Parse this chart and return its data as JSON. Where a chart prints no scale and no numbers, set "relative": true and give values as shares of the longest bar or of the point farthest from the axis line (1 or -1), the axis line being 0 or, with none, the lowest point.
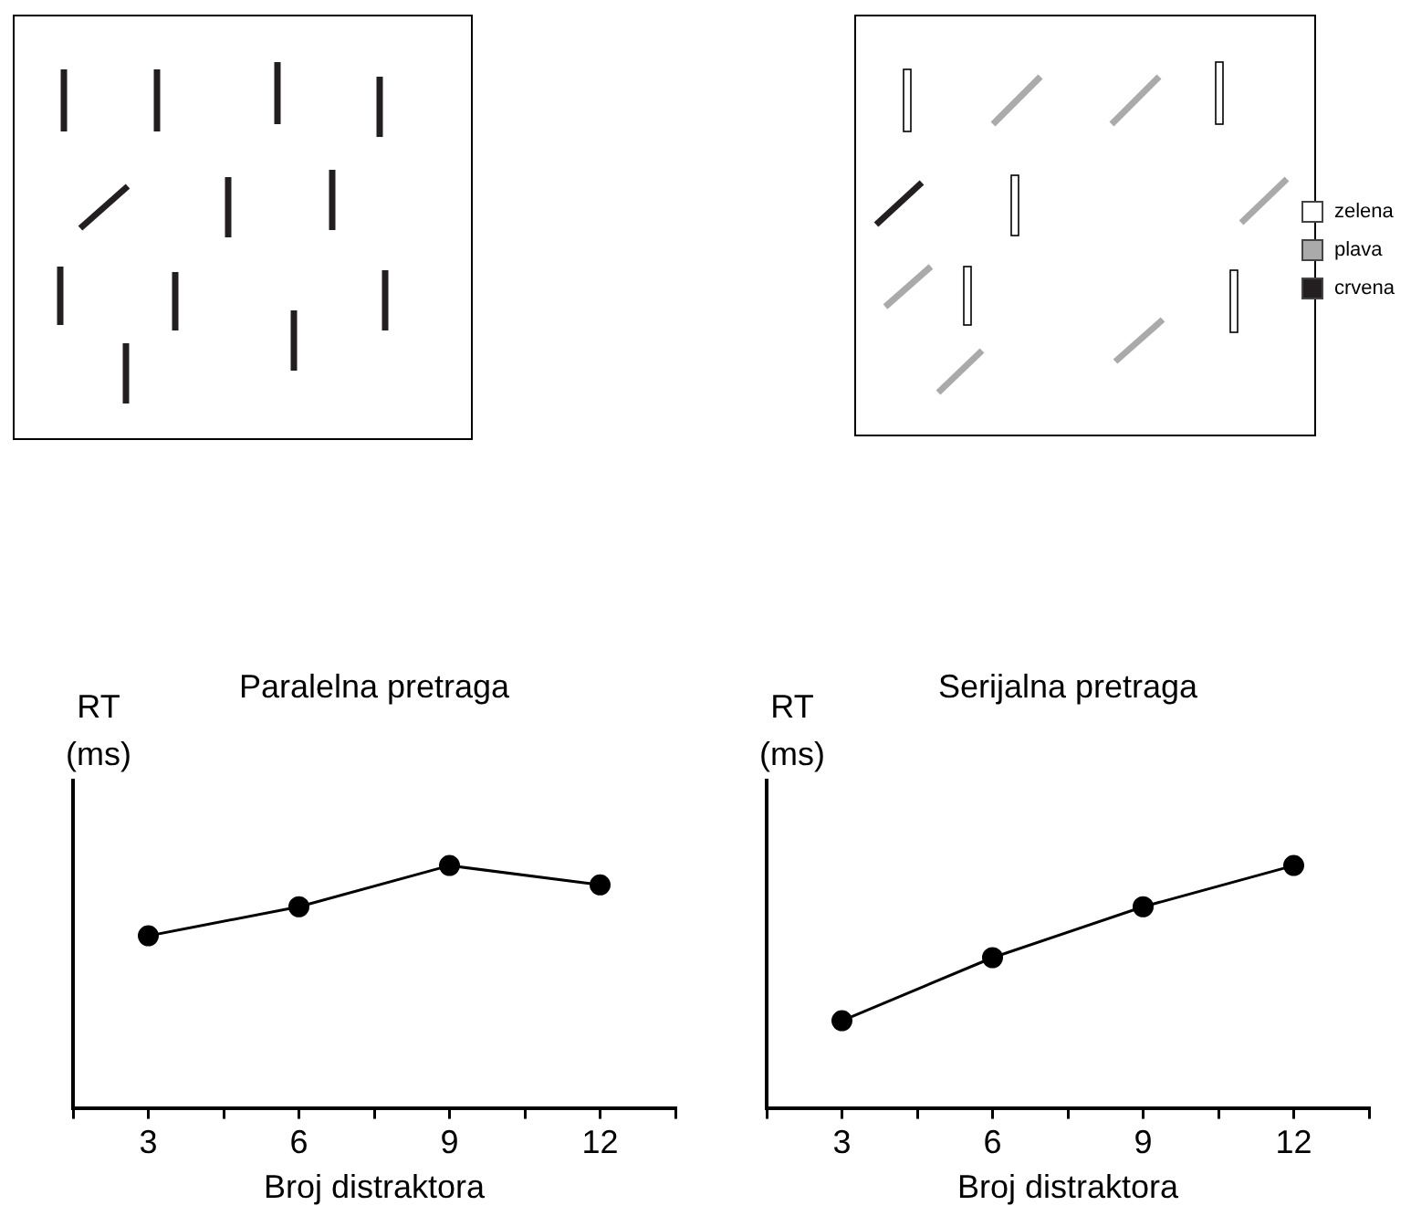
{
  "chart_data": [
    {
      "type": "other",
      "annotations": [
        "zelena",
        "plava",
        "crvena"
      ],
      "colors": [
        "#ffffff",
        "#aaaaaa",
        "#231f20"
      ]
    },
    {
      "type": "line",
      "title": "Paralelna pretraga",
      "xlabel": "Broj distraktora",
      "ylabel": "RT (ms)",
      "relative": true,
      "marker": "circle",
      "color": "#000000",
      "x": [
        3,
        6,
        9,
        12
      ],
      "values": [
        0.71,
        0.83,
        1,
        0.92
      ],
      "xlim": [
        1.5,
        13.5
      ],
      "xticks": [
        {
          "value": 1.5,
          "label": null
        },
        3,
        {
          "value": 4.5,
          "label": null
        },
        6,
        {
          "value": 7.5,
          "label": null
        },
        9,
        {
          "value": 10.5,
          "label": null
        },
        12,
        {
          "value": 13.5,
          "label": null
        }
      ]
    },
    {
      "type": "line",
      "title": "Serijalna pretraga",
      "xlabel": "Broj distraktora",
      "ylabel": "RT (ms)",
      "relative": true,
      "marker": "circle",
      "color": "#000000",
      "x": [
        3,
        6,
        9,
        12
      ],
      "values": [
        0.36,
        0.62,
        0.83,
        1
      ],
      "xlim": [
        1.5,
        13.5
      ],
      "xticks": [
        {
          "value": 1.5,
          "label": null
        },
        3,
        {
          "value": 4.5,
          "label": null
        },
        6,
        {
          "value": 7.5,
          "label": null
        },
        9,
        {
          "value": 10.5,
          "label": null
        },
        12,
        {
          "value": 13.5,
          "label": null
        }
      ]
    }
  ]
}
